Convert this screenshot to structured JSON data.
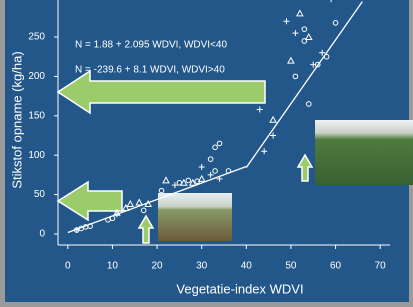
{
  "chart_data": {
    "type": "scatter",
    "x_label": "Vegetatie-index WDVI",
    "y_label": "Stikstof opname (kg/ha)",
    "annotations": [
      "N = 1.88 + 2.095 WDVI,    WDVI<40",
      "N = -239.6 + 8.1 WDVI,    WDVI>40"
    ],
    "xlim": [
      -2.2,
      72.2
    ],
    "ylim": [
      -14,
      297
    ],
    "xticks": [
      0,
      10,
      20,
      30,
      40,
      50,
      60,
      70
    ],
    "yticks": [
      0,
      50,
      100,
      150,
      200,
      250
    ],
    "color": "#ffffff",
    "series": [
      {
        "marker": "circle",
        "x": [
          2,
          3,
          4,
          5,
          9,
          10,
          17,
          21,
          25,
          27,
          29,
          32,
          33,
          34,
          33,
          36,
          51,
          54,
          53,
          58,
          60,
          56,
          53
        ],
        "y": [
          5,
          7,
          9,
          10,
          18,
          20,
          30,
          55,
          65,
          68,
          67,
          95,
          110,
          115,
          80,
          80,
          200,
          165,
          260,
          225,
          268,
          215,
          245
        ]
      },
      {
        "marker": "triangle",
        "x": [
          11,
          13,
          14,
          16,
          18,
          22,
          26,
          28,
          30,
          46,
          50,
          52,
          54
        ],
        "y": [
          27,
          33,
          38,
          40,
          38,
          68,
          65,
          65,
          70,
          145,
          220,
          280,
          250
        ]
      },
      {
        "marker": "plus",
        "x": [
          2,
          11,
          24,
          30,
          32,
          34,
          43,
          46,
          44,
          49,
          51,
          55,
          57,
          59
        ],
        "y": [
          5,
          25,
          62,
          85,
          75,
          70,
          158,
          125,
          105,
          270,
          255,
          215,
          230,
          298
        ]
      }
    ],
    "fit_lines": [
      {
        "x": [
          0,
          40
        ],
        "y": [
          1.88,
          85.68
        ]
      },
      {
        "x": [
          40,
          66
        ],
        "y": [
          84.4,
          295
        ]
      }
    ]
  }
}
